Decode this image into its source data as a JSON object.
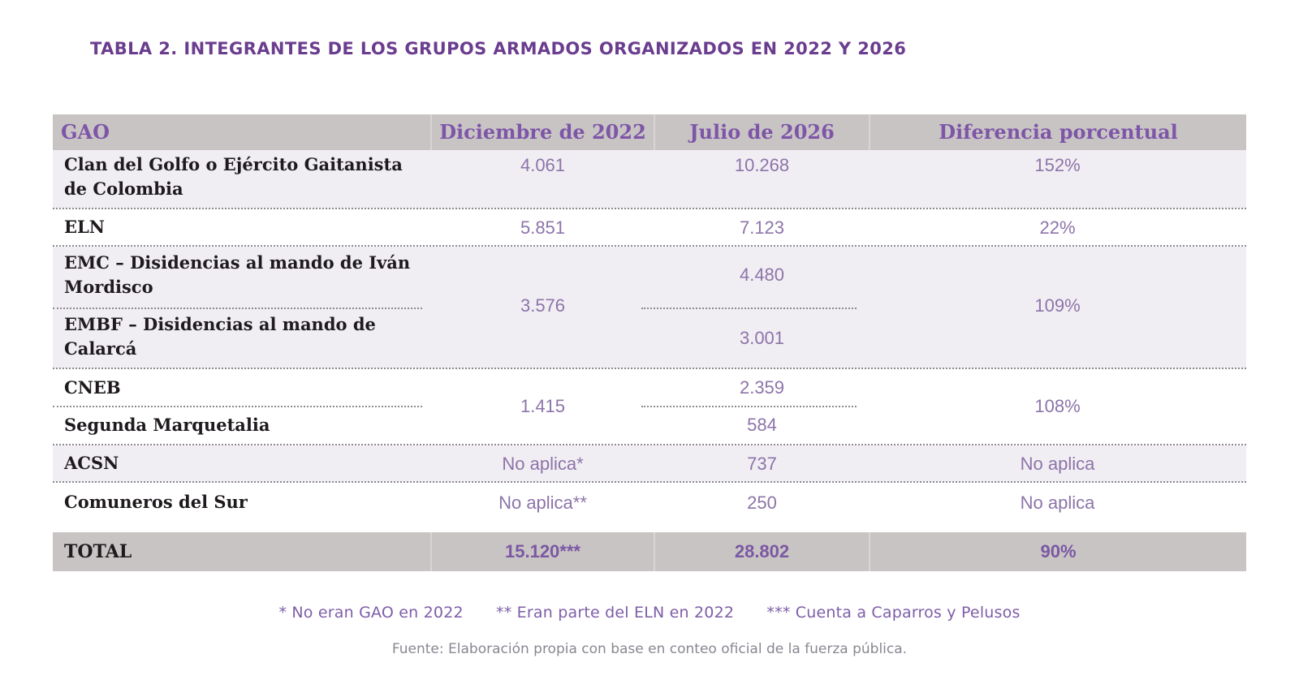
{
  "title": "TABLA 2. INTEGRANTES DE LOS GRUPOS ARMADOS ORGANIZADOS EN 2022 Y 2026",
  "table": {
    "headers": [
      "GAO",
      "Diciembre de 2022",
      "Julio de 2026",
      "Diferencia porcentual"
    ],
    "groups": {
      "clan": {
        "name_line1": "Clan del Golfo o Ejército Gaitanista",
        "name_line2": "de Colombia",
        "dic2022": "4.061",
        "jul2026": "10.268",
        "diff": "152%"
      },
      "eln": {
        "name": "ELN",
        "dic2022": "5.851",
        "jul2026": "7.123",
        "diff": "22%"
      },
      "emc": {
        "name_line1": "EMC – Disidencias al mando de Iván",
        "name_line2": "Mordisco",
        "jul2026": "4.480"
      },
      "embf": {
        "name_line1": "EMBF – Disidencias al mando de",
        "name_line2": "Calarcá",
        "jul2026": "3.001"
      },
      "emc_embf_shared": {
        "dic2022": "3.576",
        "diff": "109%"
      },
      "cneb": {
        "name": "CNEB",
        "jul2026": "2.359"
      },
      "marquetalia": {
        "name": "Segunda Marquetalia",
        "jul2026": "584"
      },
      "cneb_marq_shared": {
        "dic2022": "1.415",
        "diff": "108%"
      },
      "acsn": {
        "name": "ACSN",
        "dic2022": "No aplica*",
        "jul2026": "737",
        "diff": "No aplica"
      },
      "comuneros": {
        "name": "Comuneros del Sur",
        "dic2022": "No aplica**",
        "jul2026": "250",
        "diff": "No aplica"
      }
    },
    "total": {
      "label": "TOTAL",
      "dic2022": "15.120***",
      "jul2026": "28.802",
      "diff": "90%"
    }
  },
  "footnotes": [
    "* No eran GAO en 2022",
    "** Eran parte del ELN en 2022",
    "*** Cuenta a Caparros y Pelusos"
  ],
  "source": "Fuente: Elaboración propia con base en conteo oficial de la fuerza pública.",
  "colors": {
    "header_bg": "#c9c4c4",
    "accent_purple": "#7d56a8",
    "row_shade": "#f1eef3",
    "value_text": "#8c74a9"
  }
}
